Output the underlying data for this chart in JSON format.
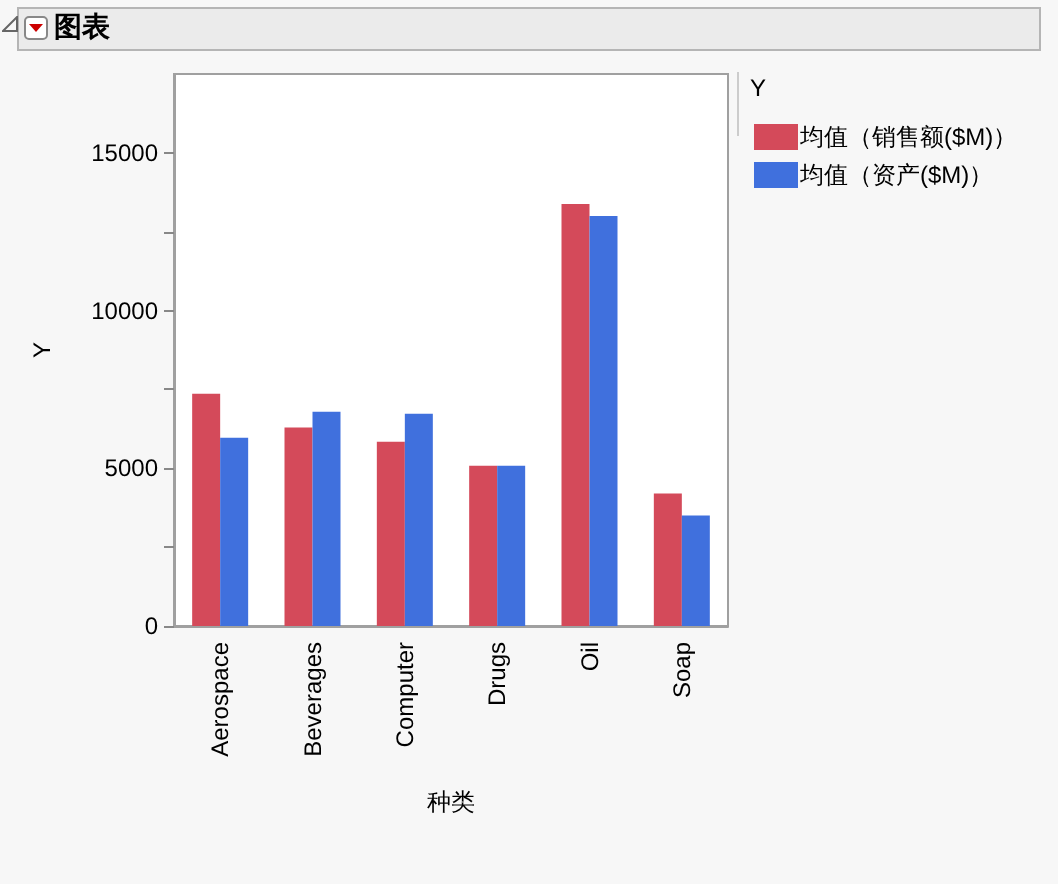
{
  "chart_data": {
    "type": "bar",
    "title": "图表",
    "xlabel": "种类",
    "ylabel": "Y",
    "legend_title": "Y",
    "legend": "right",
    "categories": [
      "Aerospace",
      "Beverages",
      "Computer",
      "Drugs",
      "Oil",
      "Soap"
    ],
    "series": [
      {
        "name": "均值（销售额($M)）",
        "color": "#d44a5a",
        "values": [
          7360,
          6290,
          5840,
          5080,
          13380,
          4200
        ]
      },
      {
        "name": "均值（资产($M)）",
        "color": "#4070dd",
        "values": [
          5970,
          6790,
          6730,
          5080,
          13000,
          3500
        ]
      }
    ],
    "ylim": [
      0,
      17500
    ],
    "yticks": [
      0,
      {
        "value": 2500,
        "label": null
      },
      5000,
      {
        "value": 7500,
        "label": null
      },
      10000,
      {
        "value": 12500,
        "label": null
      },
      15000
    ],
    "grid": false
  }
}
